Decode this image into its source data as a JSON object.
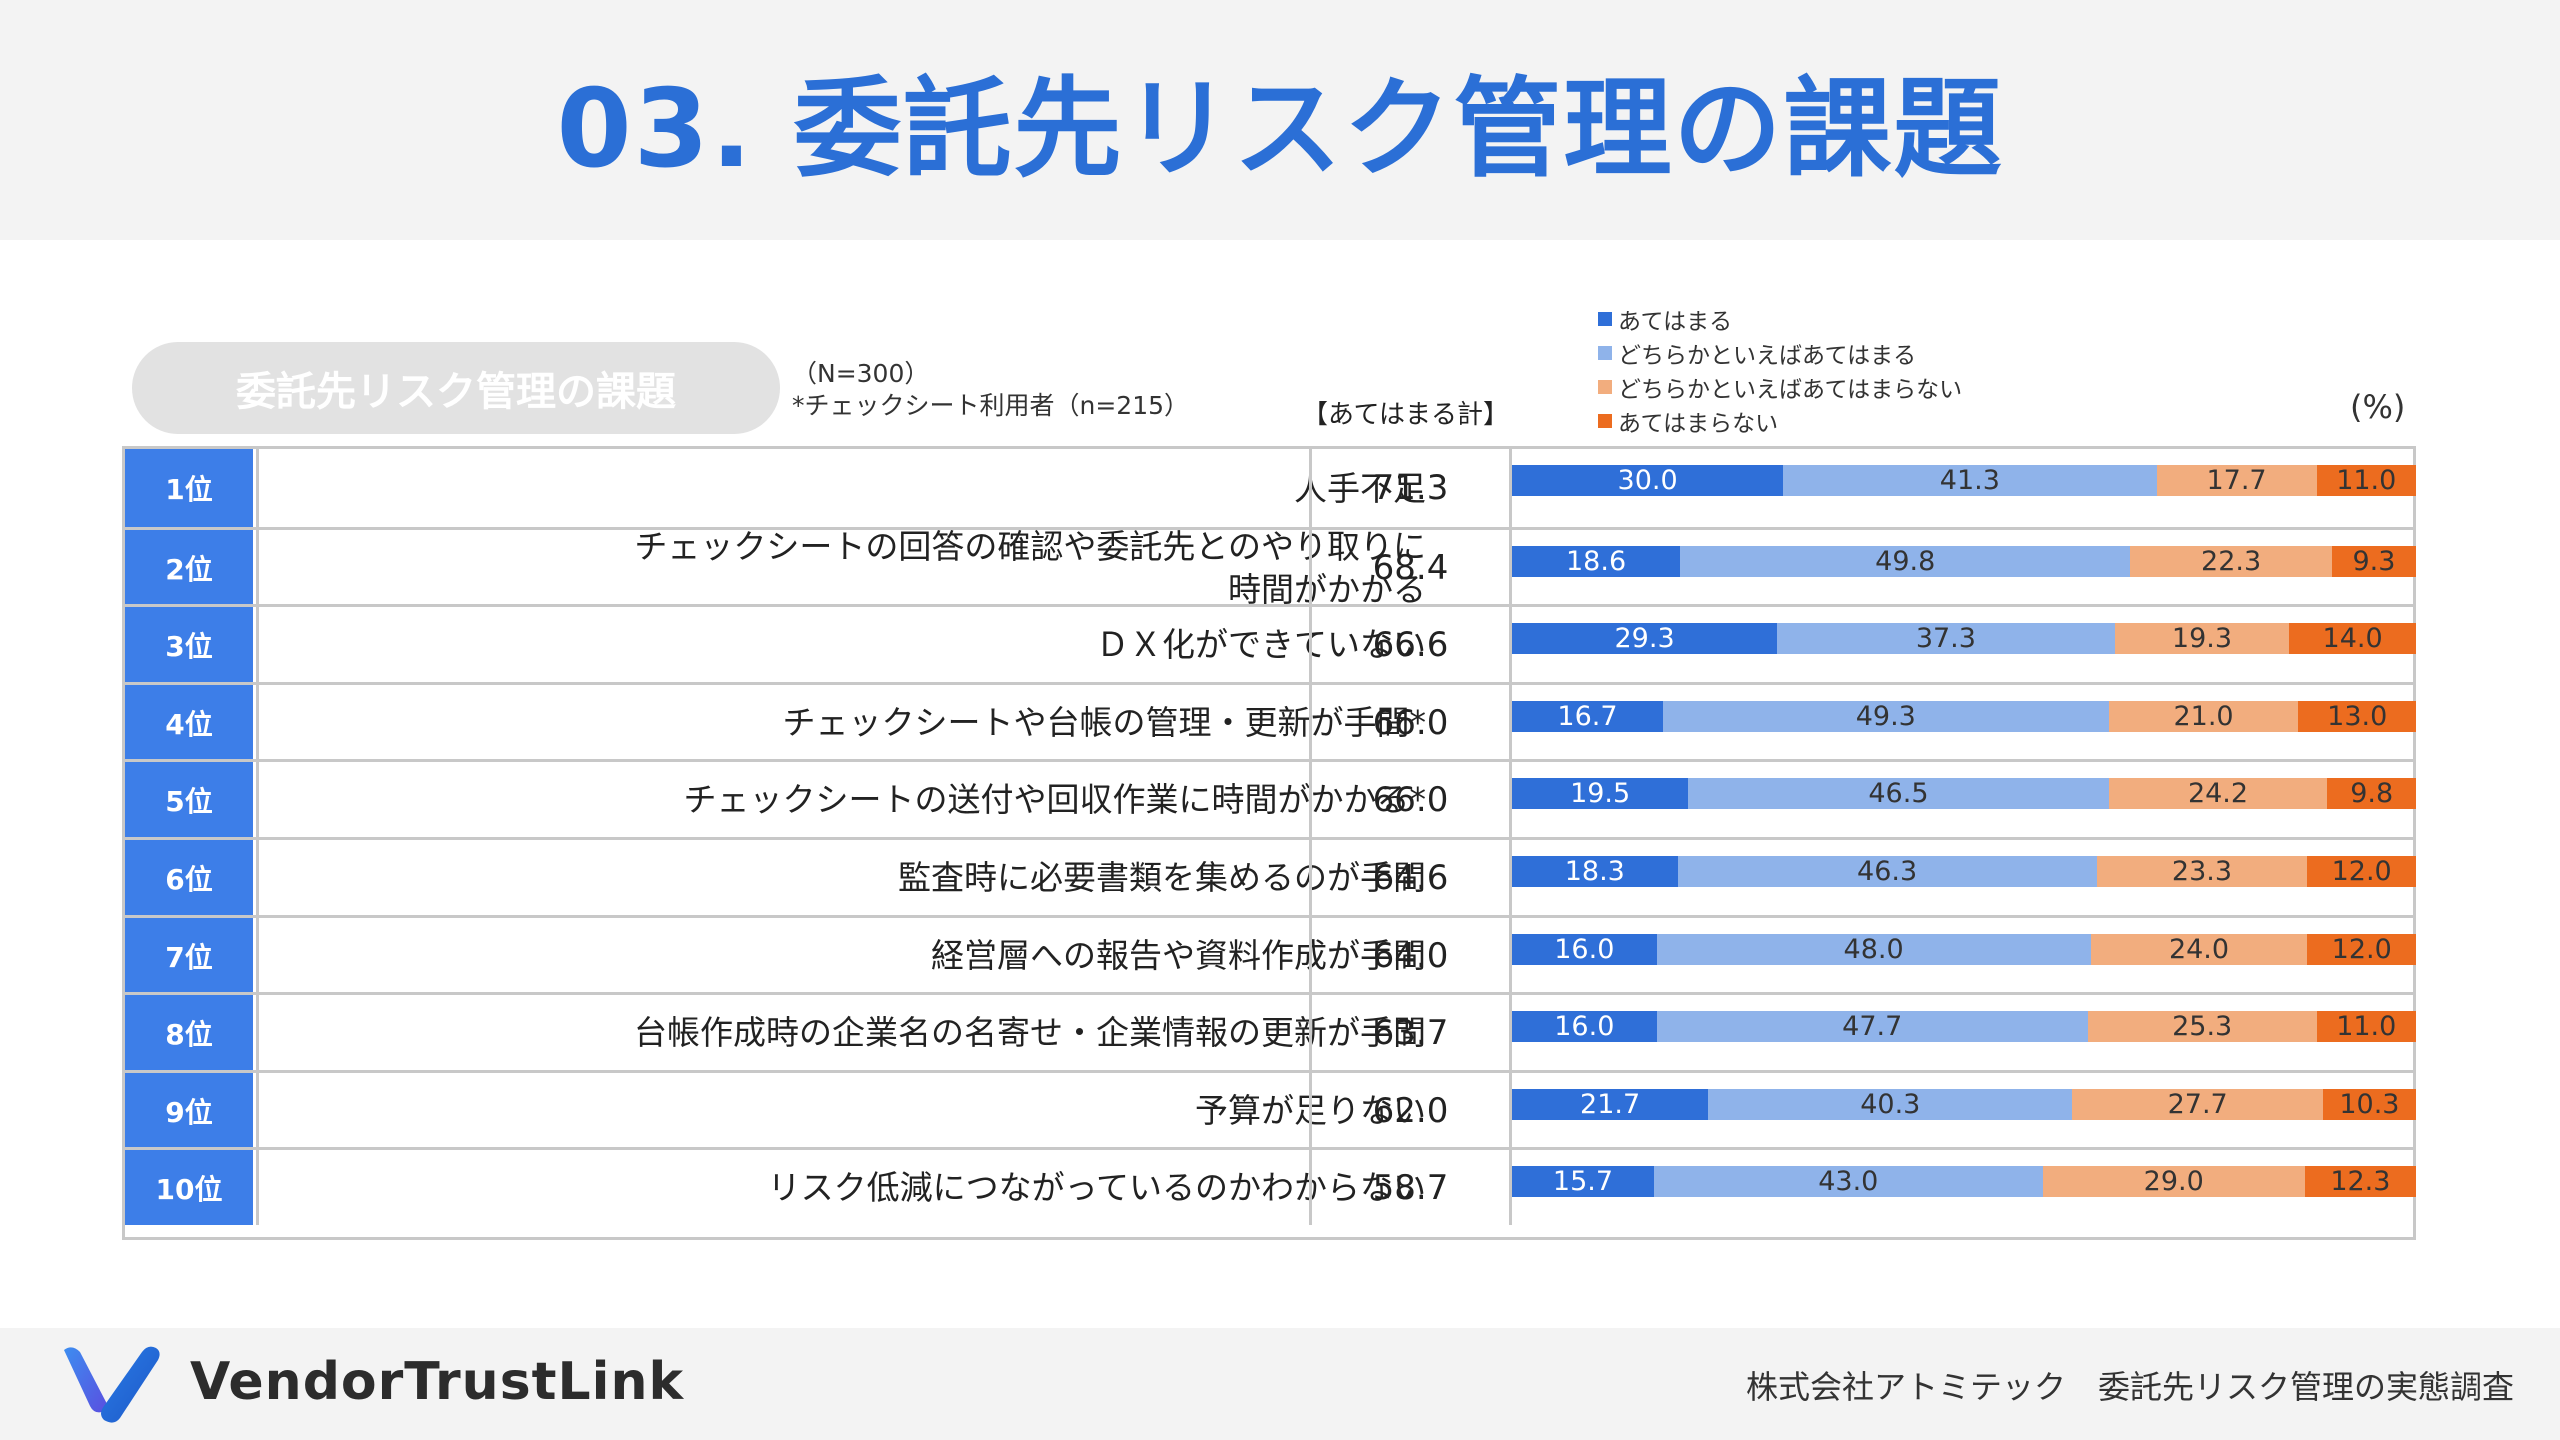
{
  "page_title": "03. 委託先リスク管理の課題",
  "section_label": "委託先リスク管理の課題",
  "sample_note": "（N=300）",
  "sample_note2": "*チェックシート利用者（n=215）",
  "total_header": "【あてはまる計】",
  "unit_label": "(%)",
  "colors": {
    "applies": "#2f6fd8",
    "somewhat_applies": "#8fb3ea",
    "somewhat_not": "#f2ad7e",
    "not_apply": "#ec6c1f",
    "accent": "#2b6fd6"
  },
  "footer": {
    "brand": "VendorTrustLink",
    "credit": "株式会社アトミテック　委託先リスク管理の実態調査"
  },
  "chart_data": {
    "type": "bar",
    "orientation": "horizontal-stacked-100",
    "legend": [
      "あてはまる",
      "どちらかといえばあてはまる",
      "どちらかといえばあてはまらない",
      "あてはまらない"
    ],
    "legend_position": "top-right",
    "rows": [
      {
        "rank": "1位",
        "label": "人手不足",
        "total": "71.3",
        "values": [
          30.0,
          41.3,
          17.7,
          11.0
        ]
      },
      {
        "rank": "2位",
        "label": "チェックシートの回答の確認や委託先とのやり取りに\n時間がかかる",
        "total": "68.4",
        "values": [
          18.6,
          49.8,
          22.3,
          9.3
        ]
      },
      {
        "rank": "3位",
        "label": "ＤＸ化ができていない",
        "total": "66.6",
        "values": [
          29.3,
          37.3,
          19.3,
          14.0
        ]
      },
      {
        "rank": "4位",
        "label": "チェックシートや台帳の管理・更新が手間*",
        "total": "66.0",
        "values": [
          16.7,
          49.3,
          21.0,
          13.0
        ]
      },
      {
        "rank": "5位",
        "label": "チェックシートの送付や回収作業に時間がかかる*",
        "total": "66.0",
        "values": [
          19.5,
          46.5,
          24.2,
          9.8
        ]
      },
      {
        "rank": "6位",
        "label": "監査時に必要書類を集めるのが手間",
        "total": "64.6",
        "values": [
          18.3,
          46.3,
          23.3,
          12.0
        ]
      },
      {
        "rank": "7位",
        "label": "経営層への報告や資料作成が手間",
        "total": "64.0",
        "values": [
          16.0,
          48.0,
          24.0,
          12.0
        ]
      },
      {
        "rank": "8位",
        "label": "台帳作成時の企業名の名寄せ・企業情報の更新が手間",
        "total": "63.7",
        "values": [
          16.0,
          47.7,
          25.3,
          11.0
        ]
      },
      {
        "rank": "9位",
        "label": "予算が足りない",
        "total": "62.0",
        "values": [
          21.7,
          40.3,
          27.7,
          10.3
        ]
      },
      {
        "rank": "10位",
        "label": "リスク低減につながっているのかわからない",
        "total": "58.7",
        "values": [
          15.7,
          43.0,
          29.0,
          12.3
        ]
      }
    ]
  }
}
